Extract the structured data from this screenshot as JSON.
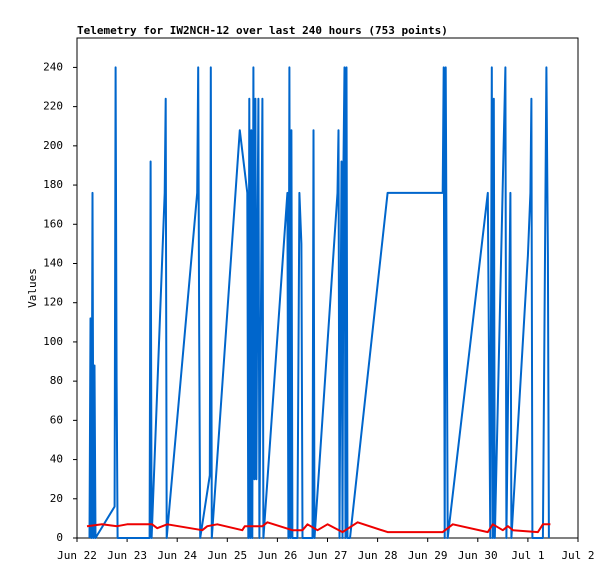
{
  "chart_data": {
    "type": "line",
    "title": "Telemetry for IW2NCH-12 over last 240 hours (753 points)",
    "y_label": "Values",
    "xlim": [
      0,
      10
    ],
    "xticks": [
      {
        "value": 0,
        "label": "Jun 22"
      },
      {
        "value": 1,
        "label": "Jun 23"
      },
      {
        "value": 2,
        "label": "Jun 24"
      },
      {
        "value": 3,
        "label": "Jun 25"
      },
      {
        "value": 4,
        "label": "Jun 26"
      },
      {
        "value": 5,
        "label": "Jun 27"
      },
      {
        "value": 6,
        "label": "Jun 28"
      },
      {
        "value": 7,
        "label": "Jun 29"
      },
      {
        "value": 8,
        "label": "Jun 30"
      },
      {
        "value": 9,
        "label": "Jul 1"
      },
      {
        "value": 10,
        "label": "Jul 2"
      }
    ],
    "ylim": [
      0,
      255
    ],
    "yticks": [
      0,
      20,
      40,
      60,
      80,
      100,
      120,
      140,
      160,
      180,
      200,
      220,
      240
    ],
    "grid": false,
    "series": [
      {
        "color": "#0066cc",
        "x": [
          0.25,
          0.27,
          0.29,
          0.31,
          0.33,
          0.35,
          0.37,
          0.75,
          0.77,
          0.79,
          0.81,
          1.45,
          1.47,
          1.49,
          1.75,
          1.77,
          1.79,
          2.4,
          2.42,
          2.44,
          2.46,
          2.65,
          2.67,
          2.69,
          3.25,
          3.4,
          3.42,
          3.44,
          3.46,
          3.48,
          3.5,
          3.52,
          3.54,
          3.56,
          3.58,
          3.6,
          3.62,
          3.64,
          3.7,
          3.72,
          4.2,
          4.22,
          4.24,
          4.26,
          4.28,
          4.3,
          4.4,
          4.44,
          4.48,
          4.5,
          4.7,
          4.72,
          4.74,
          5.2,
          5.22,
          5.24,
          5.28,
          5.3,
          5.32,
          5.34,
          5.36,
          5.38,
          5.4,
          5.45,
          6.2,
          7.3,
          7.32,
          7.34,
          7.36,
          7.38,
          7.4,
          8.2,
          8.25,
          8.28,
          8.3,
          8.32,
          8.34,
          8.55,
          8.57,
          8.65,
          8.67,
          9.0,
          9.05,
          9.07,
          9.09,
          9.28,
          9.3,
          9.37,
          9.4,
          9.42
        ],
        "values": [
          0,
          112,
          0,
          176,
          0,
          88,
          0,
          16,
          240,
          80,
          0,
          0,
          192,
          0,
          176,
          224,
          0,
          176,
          240,
          104,
          0,
          32,
          240,
          0,
          208,
          176,
          0,
          224,
          0,
          208,
          0,
          240,
          30,
          224,
          30,
          144,
          224,
          0,
          224,
          0,
          176,
          0,
          240,
          0,
          208,
          0,
          0,
          176,
          150,
          0,
          0,
          208,
          0,
          176,
          208,
          0,
          192,
          0,
          192,
          240,
          0,
          240,
          0,
          0,
          176,
          176,
          240,
          0,
          240,
          128,
          0,
          176,
          0,
          240,
          0,
          224,
          0,
          240,
          0,
          176,
          0,
          144,
          176,
          224,
          0,
          0,
          0,
          240,
          144,
          0
        ]
      },
      {
        "color": "#ee0000",
        "x": [
          0.2,
          0.5,
          0.8,
          1,
          1.5,
          1.6,
          1.8,
          2.5,
          2.6,
          2.8,
          3.3,
          3.35,
          3.7,
          3.8,
          4.3,
          4.5,
          4.6,
          4.8,
          5,
          5.3,
          5.6,
          6.2,
          7.3,
          7.5,
          8.2,
          8.3,
          8.5,
          8.6,
          8.7,
          9.2,
          9.3,
          9.45
        ],
        "values": [
          6,
          7,
          6,
          7,
          7,
          5,
          7,
          4,
          6,
          7,
          4,
          6,
          6,
          8,
          4,
          4,
          7,
          4,
          7,
          3,
          8,
          3,
          3,
          7,
          3,
          7,
          4,
          6,
          4,
          3,
          7,
          7
        ]
      }
    ]
  }
}
